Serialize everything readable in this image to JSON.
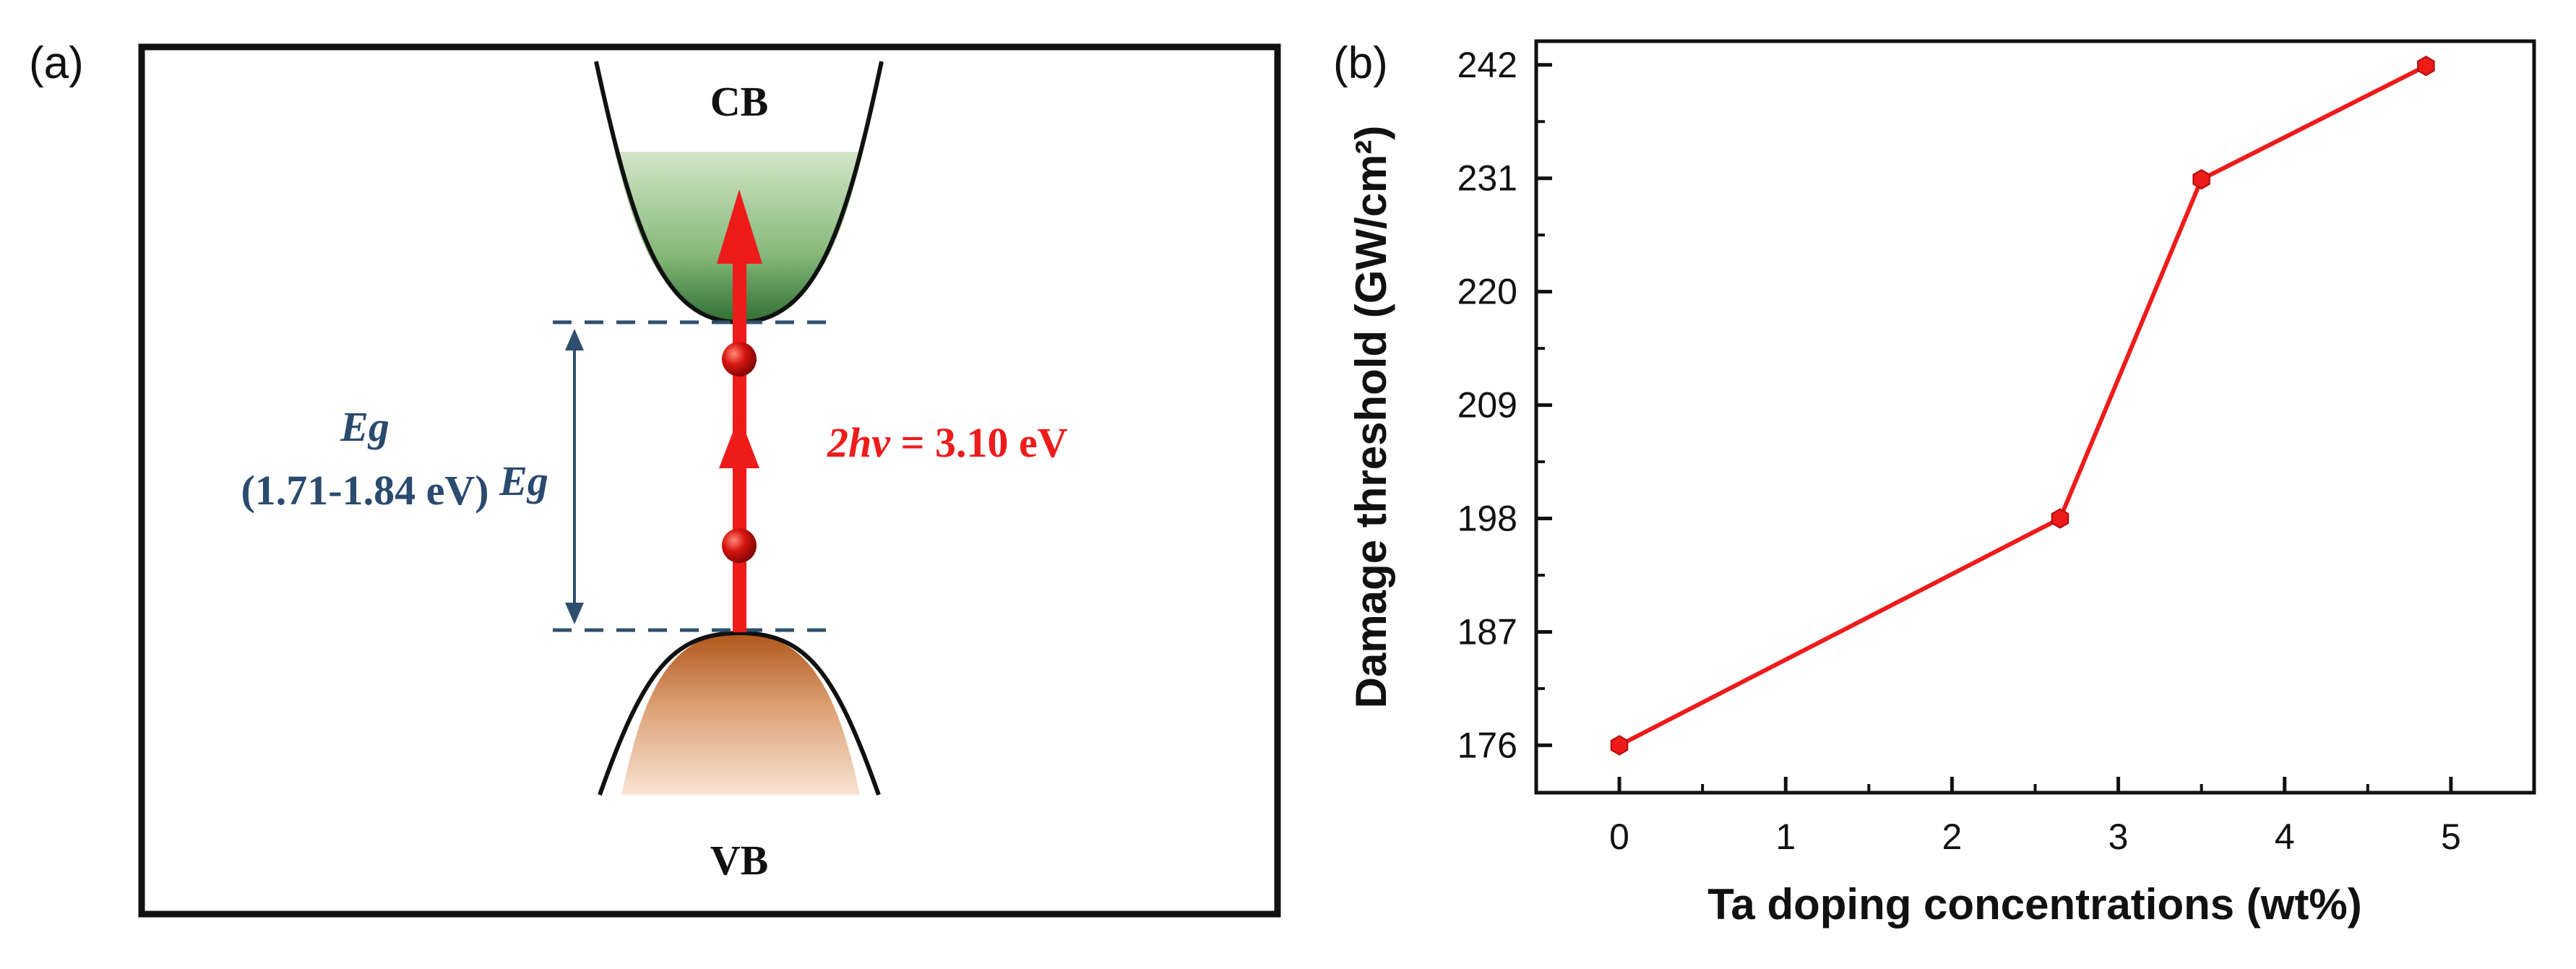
{
  "panel_a": {
    "label": "(a)",
    "cb_label": "CB",
    "vb_label": "VB",
    "eg_left_title": "Eg",
    "eg_left_range": "(1.71-1.84 eV)",
    "eg_inner": "Eg",
    "photon_prefix": "2hv",
    "photon_value": " = 3.10 eV",
    "colors": {
      "text_blue": "#2a4a70",
      "arrow_red": "#ee1b1b",
      "dash_blue": "#2f4f6e",
      "cb_fill_top": "#cfe3c3",
      "cb_fill_bottom": "#3f7f40",
      "vb_fill_top": "#b45c20",
      "vb_fill_bottom": "#f6ddca"
    }
  },
  "panel_b": {
    "label": "(b)"
  },
  "chart_data": {
    "type": "line",
    "title": "",
    "xlabel": "Ta doping concentrations (wt%)",
    "ylabel": "Damage threshold (GW/cm²)",
    "xlim": [
      -0.5,
      5.5
    ],
    "ylim": [
      171.4,
      244.3
    ],
    "xticks": [
      0,
      1,
      2,
      3,
      4,
      5
    ],
    "yticks": [
      176,
      187,
      198,
      209,
      220,
      231,
      242
    ],
    "series": [
      {
        "name": "Damage threshold",
        "color": "#ee1b1b",
        "x": [
          0,
          2.65,
          3.5,
          4.85
        ],
        "y": [
          176,
          198,
          230.9,
          241.9
        ]
      }
    ]
  }
}
